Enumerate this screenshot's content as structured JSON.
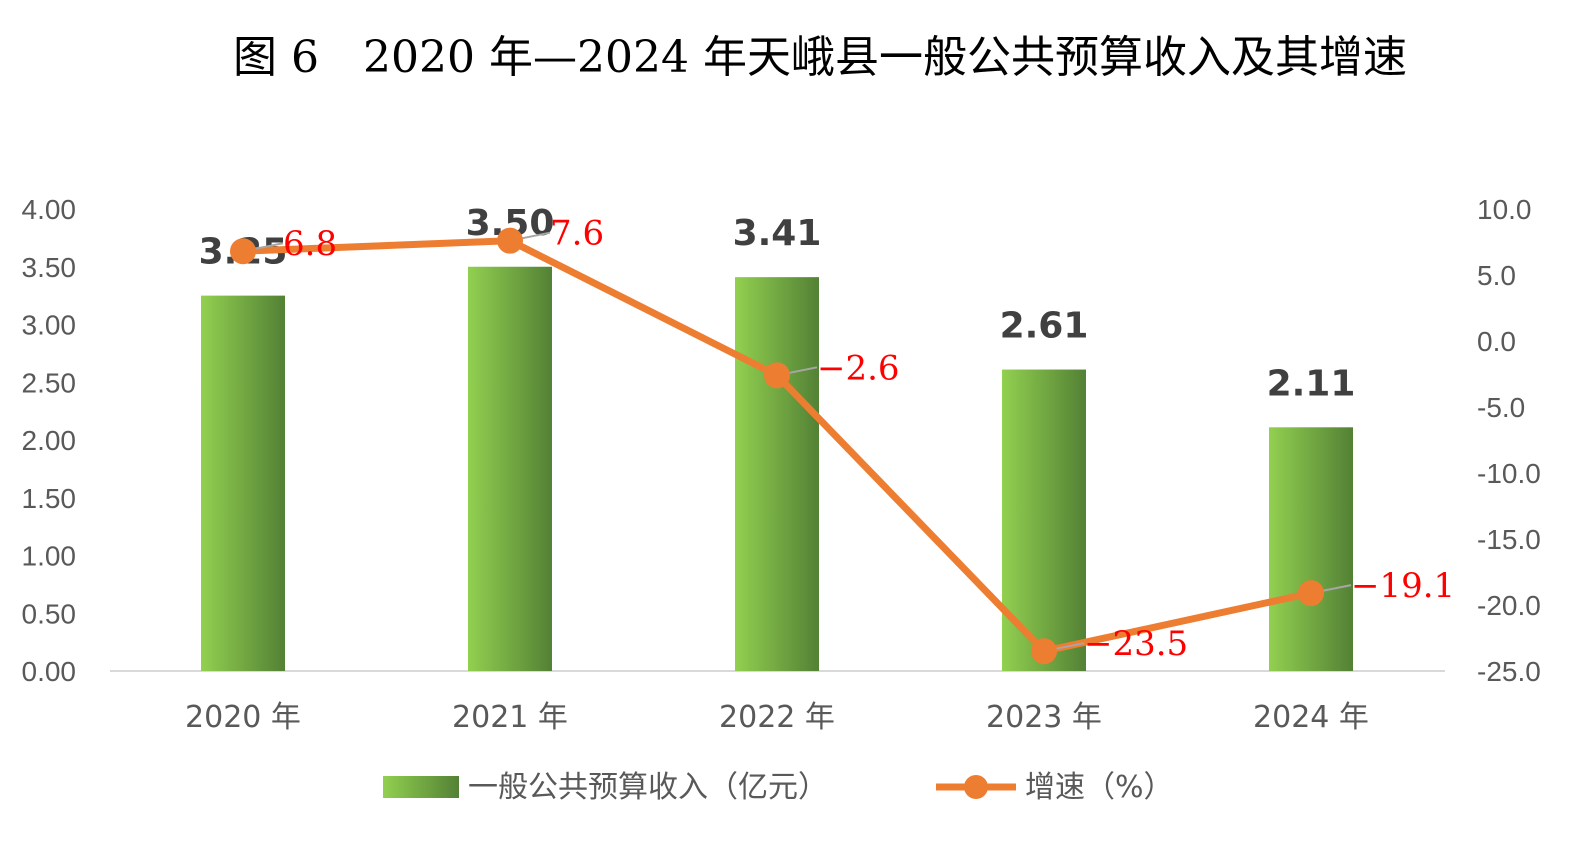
{
  "chart_data": {
    "type": "bar",
    "title": "图 6　2020 年—2024 年天峨县一般公共预算收入及其增速",
    "categories": [
      "2020 年",
      "2021 年",
      "2022 年",
      "2023 年",
      "2024 年"
    ],
    "series": [
      {
        "name": "一般公共预算收入（亿元）",
        "type": "bar",
        "axis": "left",
        "values": [
          3.25,
          3.5,
          3.41,
          2.61,
          2.11
        ],
        "labels": [
          "3.25",
          "3.50",
          "3.41",
          "2.61",
          "2.11"
        ],
        "color_light": "#92d050",
        "color_dark": "#538135"
      },
      {
        "name": "增速（%）",
        "type": "line",
        "axis": "right",
        "values": [
          6.8,
          7.6,
          -2.6,
          -23.5,
          -19.1
        ],
        "labels": [
          "6.8",
          "7.6",
          "−2.6",
          "−23.5",
          "−19.1"
        ],
        "color": "#ed7d31",
        "label_color": "#ff0000"
      }
    ],
    "y_left": {
      "range": [
        0,
        4
      ],
      "ticks": [
        "0.00",
        "0.50",
        "1.00",
        "1.50",
        "2.00",
        "2.50",
        "3.00",
        "3.50",
        "4.00"
      ]
    },
    "y_right": {
      "range": [
        -25,
        10
      ],
      "ticks": [
        "-25.0",
        "-20.0",
        "-15.0",
        "-10.0",
        "-5.0",
        "0.0",
        "5.0",
        "10.0"
      ]
    },
    "grid": false,
    "legend": "bottom"
  }
}
